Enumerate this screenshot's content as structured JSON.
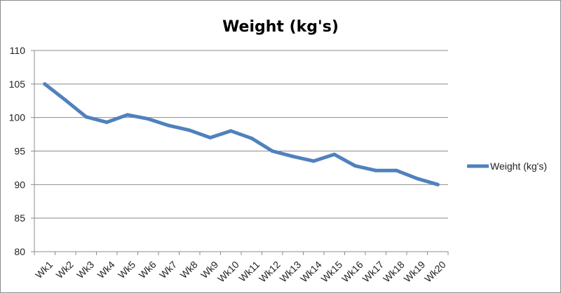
{
  "chart_data": {
    "type": "line",
    "title": "Weight (kg's)",
    "xlabel": "",
    "ylabel": "",
    "categories": [
      "Wk1",
      "Wk2",
      "Wk3",
      "Wk4",
      "Wk5",
      "Wk6",
      "Wk7",
      "Wk8",
      "Wk9",
      "Wk10",
      "Wk11",
      "Wk12",
      "Wk13",
      "Wk14",
      "Wk15",
      "Wk16",
      "Wk17",
      "Wk18",
      "Wk19",
      "Wk20"
    ],
    "series": [
      {
        "name": "Weight (kg's)",
        "color": "#4f81bd",
        "values": [
          105,
          102.6,
          100.1,
          99.3,
          100.4,
          99.8,
          98.8,
          98.1,
          97.0,
          98.0,
          96.9,
          95.0,
          94.2,
          93.5,
          94.5,
          92.8,
          92.1,
          92.1,
          90.9,
          90.0
        ]
      }
    ],
    "ylim": [
      80,
      110
    ],
    "yticks": [
      80,
      85,
      90,
      95,
      100,
      105,
      110
    ],
    "grid": true,
    "legend": "right"
  }
}
